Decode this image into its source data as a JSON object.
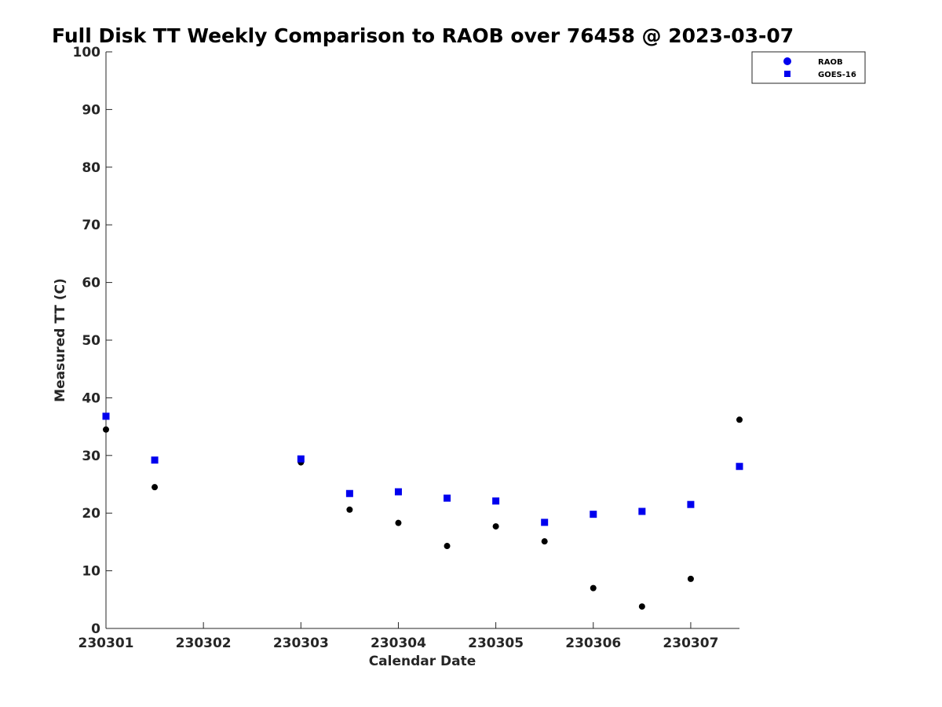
{
  "chart_data": {
    "type": "scatter",
    "title": "Full Disk TT Weekly Comparison to RAOB over 76458 @ 2023-03-07",
    "xlabel": "Calendar Date",
    "ylabel": "Measured TT (C)",
    "xlim": [
      230301,
      230307.5
    ],
    "ylim": [
      0,
      100
    ],
    "xticks": [
      230301,
      230302,
      230303,
      230304,
      230305,
      230306,
      230307
    ],
    "xtick_labels": [
      "230301",
      "230302",
      "230303",
      "230304",
      "230305",
      "230306",
      "230307"
    ],
    "yticks": [
      0,
      10,
      20,
      30,
      40,
      50,
      60,
      70,
      80,
      90,
      100
    ],
    "ytick_labels": [
      "0",
      "10",
      "20",
      "30",
      "40",
      "50",
      "60",
      "70",
      "80",
      "90",
      "100"
    ],
    "grid": false,
    "legend_position": "top-right",
    "legend": [
      {
        "label": "RAOB",
        "marker": "circle",
        "color": "#0000ee"
      },
      {
        "label": "GOES-16",
        "marker": "square",
        "color": "#0000ee"
      }
    ],
    "series": [
      {
        "name": "RAOB",
        "marker": "circle",
        "color": "#000000",
        "x": [
          230301,
          230301.5,
          230303,
          230303.5,
          230304,
          230304.5,
          230305,
          230305.5,
          230306,
          230306.5,
          230307,
          230307.5
        ],
        "y": [
          34.5,
          24.5,
          28.8,
          20.6,
          18.3,
          14.3,
          17.7,
          15.1,
          7.0,
          3.8,
          8.6,
          36.2
        ]
      },
      {
        "name": "GOES-16",
        "marker": "square",
        "color": "#0000ee",
        "x": [
          230301,
          230301.5,
          230303,
          230303.5,
          230304,
          230304.5,
          230305,
          230305.5,
          230306,
          230306.5,
          230307,
          230307.5
        ],
        "y": [
          36.8,
          29.2,
          29.4,
          23.4,
          23.7,
          22.6,
          22.1,
          18.4,
          19.8,
          20.3,
          21.5,
          28.1
        ]
      }
    ]
  }
}
